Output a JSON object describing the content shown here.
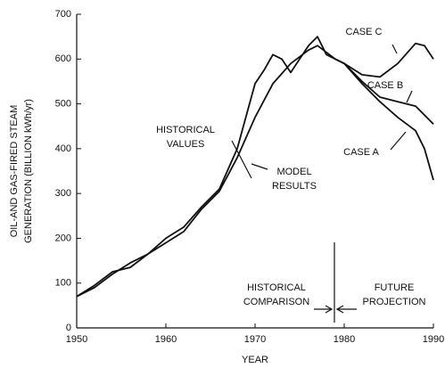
{
  "chart_data": {
    "type": "line",
    "y_label": [
      "OIL-AND GAS-FIRED STEAM",
      "GENERATION (BILLION kWh/yr)"
    ],
    "x_label": "YEAR",
    "xlim": [
      1950,
      1990
    ],
    "xticks": [
      1950,
      1960,
      1970,
      1980,
      1990
    ],
    "ylim": [
      0,
      700
    ],
    "yticks": [
      0,
      100,
      200,
      300,
      400,
      500,
      600,
      700
    ],
    "series": [
      {
        "color": "#111111",
        "x": [
          1950,
          1952,
          1954,
          1956,
          1958,
          1960,
          1962,
          1964,
          1966,
          1968,
          1970,
          1971,
          1972,
          1973,
          1974,
          1975,
          1976,
          1977,
          1978,
          1979
        ],
        "values": [
          70,
          95,
          125,
          135,
          165,
          200,
          225,
          270,
          310,
          400,
          545,
          575,
          610,
          600,
          570,
          600,
          630,
          650,
          610,
          600
        ]
      },
      {
        "color": "#111111",
        "x": [
          1950,
          1952,
          1954,
          1956,
          1958,
          1960,
          1962,
          1964,
          1966,
          1968,
          1970,
          1972,
          1974,
          1976,
          1977,
          1978,
          1979
        ],
        "values": [
          70,
          90,
          120,
          145,
          165,
          190,
          215,
          265,
          305,
          380,
          470,
          545,
          590,
          620,
          630,
          615,
          600
        ]
      },
      {
        "color": "#111111",
        "x": [
          1979,
          1980,
          1982,
          1984,
          1986,
          1988,
          1989,
          1990
        ],
        "values": [
          600,
          590,
          565,
          560,
          590,
          635,
          630,
          600
        ]
      },
      {
        "color": "#111111",
        "x": [
          1979,
          1980,
          1982,
          1984,
          1986,
          1988,
          1990
        ],
        "values": [
          600,
          590,
          550,
          515,
          505,
          495,
          455
        ]
      },
      {
        "color": "#111111",
        "x": [
          1979,
          1980,
          1982,
          1984,
          1986,
          1988,
          1989,
          1990
        ],
        "values": [
          600,
          590,
          545,
          505,
          470,
          440,
          400,
          330
        ]
      }
    ],
    "annotations": [
      {
        "lines": [
          "CASE C"
        ]
      },
      {
        "lines": [
          "CASE B"
        ]
      },
      {
        "lines": [
          "CASE A"
        ]
      },
      {
        "lines": [
          "HISTORICAL",
          "VALUES"
        ]
      },
      {
        "lines": [
          "MODEL",
          "RESULTS"
        ]
      },
      {
        "lines": [
          "HISTORICAL",
          "COMPARISON"
        ]
      },
      {
        "lines": [
          "FUTURE",
          "PROJECTION"
        ]
      }
    ]
  }
}
